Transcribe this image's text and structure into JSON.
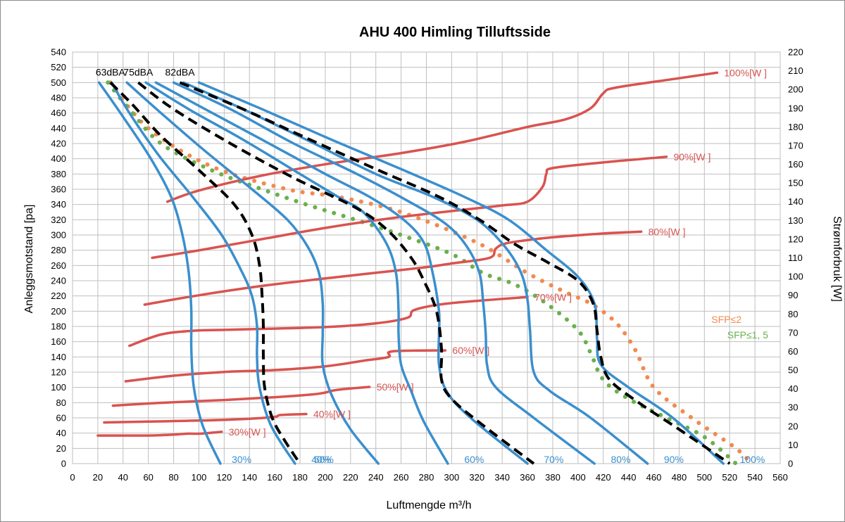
{
  "chart_data": {
    "type": "line",
    "title": "AHU 400 Himling Tilluftsside",
    "xlabel": "Luftmengde m³/h",
    "ylabel": "Anleggsmotstand [pa]",
    "y2label": "Strømforbruk [W]",
    "xlim": [
      0,
      560
    ],
    "ylim": [
      0,
      540
    ],
    "y2lim": [
      0,
      220
    ],
    "x_ticks": [
      "0",
      "20",
      "40",
      "60",
      "80",
      "100",
      "120",
      "140",
      "160",
      "180",
      "200",
      "220",
      "240",
      "260",
      "280",
      "300",
      "320",
      "340",
      "360",
      "380",
      "400",
      "420",
      "440",
      "460",
      "480",
      "500",
      "520",
      "540",
      "560"
    ],
    "y_ticks": [
      "0",
      "20",
      "40",
      "60",
      "80",
      "100",
      "120",
      "140",
      "160",
      "180",
      "200",
      "220",
      "240",
      "260",
      "280",
      "300",
      "320",
      "340",
      "360",
      "380",
      "400",
      "420",
      "440",
      "460",
      "480",
      "500",
      "520",
      "540"
    ],
    "y2_ticks": [
      "0",
      "10",
      "20",
      "30",
      "40",
      "50",
      "60",
      "70",
      "80",
      "90",
      "100",
      "110",
      "120",
      "130",
      "140",
      "150",
      "160",
      "170",
      "180",
      "190",
      "200",
      "210",
      "220"
    ],
    "grid": true,
    "colors": {
      "fan": "#3b8fcd",
      "power": "#d9534f",
      "sound": "#000000",
      "sfp2": "#f28a4e",
      "sfp15": "#6ab04c"
    },
    "fan_curves": [
      {
        "label": "30%",
        "label_x": 126,
        "points": [
          [
            21,
            500
          ],
          [
            40,
            455
          ],
          [
            62,
            400
          ],
          [
            78,
            350
          ],
          [
            87,
            300
          ],
          [
            92,
            250
          ],
          [
            94,
            200
          ],
          [
            94,
            150
          ],
          [
            96,
            100
          ],
          [
            103,
            50
          ],
          [
            117,
            0
          ]
        ]
      },
      {
        "label": "40%",
        "points": [
          [
            31,
            500
          ],
          [
            45,
            460
          ],
          [
            68,
            405
          ],
          [
            95,
            350
          ],
          [
            118,
            300
          ],
          [
            133,
            255
          ],
          [
            142,
            220
          ],
          [
            146,
            180
          ],
          [
            146,
            140
          ],
          [
            148,
            100
          ],
          [
            157,
            50
          ],
          [
            176,
            0
          ]
        ]
      },
      {
        "label": "50%",
        "label_x": 191,
        "points": [
          [
            43,
            500
          ],
          [
            70,
            460
          ],
          [
            105,
            410
          ],
          [
            142,
            360
          ],
          [
            170,
            320
          ],
          [
            186,
            285
          ],
          [
            195,
            250
          ],
          [
            198,
            210
          ],
          [
            198,
            170
          ],
          [
            198,
            130
          ],
          [
            205,
            90
          ],
          [
            220,
            45
          ],
          [
            242,
            0
          ]
        ]
      },
      {
        "label": "60%",
        "points": [
          [
            58,
            500
          ],
          [
            92,
            465
          ],
          [
            135,
            425
          ],
          [
            180,
            380
          ],
          [
            210,
            350
          ],
          [
            230,
            330
          ],
          [
            248,
            290
          ],
          [
            256,
            250
          ],
          [
            258,
            200
          ],
          [
            258,
            170
          ],
          [
            260,
            130
          ],
          [
            268,
            95
          ],
          [
            278,
            55
          ],
          [
            297,
            0
          ]
        ]
      },
      {
        "label": "70%",
        "points": [
          [
            66,
            500
          ],
          [
            105,
            465
          ],
          [
            150,
            425
          ],
          [
            200,
            380
          ],
          [
            235,
            350
          ],
          [
            262,
            320
          ],
          [
            278,
            290
          ],
          [
            285,
            250
          ],
          [
            290,
            200
          ],
          [
            290,
            170
          ],
          [
            290,
            130
          ],
          [
            296,
            95
          ],
          [
            315,
            60
          ],
          [
            360,
            0
          ]
        ]
      },
      {
        "label": "80%",
        "points": [
          [
            80,
            500
          ],
          [
            125,
            465
          ],
          [
            175,
            420
          ],
          [
            225,
            380
          ],
          [
            265,
            345
          ],
          [
            295,
            315
          ],
          [
            312,
            285
          ],
          [
            322,
            250
          ],
          [
            325,
            210
          ],
          [
            327,
            170
          ],
          [
            328,
            130
          ],
          [
            335,
            100
          ],
          [
            365,
            60
          ],
          [
            413,
            0
          ]
        ]
      },
      {
        "label": "90%",
        "points": [
          [
            88,
            500
          ],
          [
            135,
            465
          ],
          [
            185,
            425
          ],
          [
            240,
            380
          ],
          [
            285,
            350
          ],
          [
            320,
            320
          ],
          [
            342,
            285
          ],
          [
            355,
            250
          ],
          [
            360,
            215
          ],
          [
            362,
            175
          ],
          [
            365,
            120
          ],
          [
            378,
            95
          ],
          [
            410,
            60
          ],
          [
            455,
            0
          ]
        ]
      },
      {
        "label": "100%",
        "points": [
          [
            100,
            500
          ],
          [
            150,
            465
          ],
          [
            205,
            425
          ],
          [
            262,
            385
          ],
          [
            310,
            350
          ],
          [
            345,
            320
          ],
          [
            375,
            280
          ],
          [
            400,
            245
          ],
          [
            413,
            210
          ],
          [
            415,
            165
          ],
          [
            418,
            130
          ],
          [
            440,
            100
          ],
          [
            475,
            60
          ],
          [
            515,
            0
          ]
        ]
      }
    ],
    "sound_curves": [
      {
        "label": "63dBA",
        "points": [
          [
            30,
            500
          ],
          [
            48,
            470
          ],
          [
            70,
            430
          ],
          [
            100,
            385
          ],
          [
            128,
            340
          ],
          [
            142,
            300
          ],
          [
            148,
            260
          ],
          [
            150,
            220
          ],
          [
            151,
            180
          ],
          [
            151,
            140
          ],
          [
            152,
            100
          ],
          [
            158,
            60
          ],
          [
            168,
            30
          ],
          [
            180,
            0
          ]
        ]
      },
      {
        "label": "75dBA",
        "points": [
          [
            52,
            500
          ],
          [
            80,
            465
          ],
          [
            125,
            420
          ],
          [
            175,
            375
          ],
          [
            225,
            335
          ],
          [
            250,
            305
          ],
          [
            268,
            270
          ],
          [
            278,
            240
          ],
          [
            288,
            200
          ],
          [
            292,
            150
          ],
          [
            292,
            110
          ],
          [
            300,
            85
          ],
          [
            325,
            50
          ],
          [
            365,
            0
          ]
        ]
      },
      {
        "label": "82dBA",
        "points": [
          [
            85,
            500
          ],
          [
            135,
            465
          ],
          [
            188,
            425
          ],
          [
            242,
            385
          ],
          [
            290,
            350
          ],
          [
            322,
            320
          ],
          [
            350,
            288
          ],
          [
            375,
            265
          ],
          [
            400,
            240
          ],
          [
            412,
            210
          ],
          [
            415,
            175
          ],
          [
            418,
            140
          ],
          [
            425,
            110
          ],
          [
            448,
            80
          ],
          [
            480,
            45
          ],
          [
            520,
            0
          ]
        ]
      }
    ],
    "sfp_curves": [
      {
        "label": "SFP≤2",
        "points": [
          [
            30,
            500
          ],
          [
            60,
            440
          ],
          [
            110,
            390
          ],
          [
            170,
            360
          ],
          [
            210,
            350
          ],
          [
            260,
            330
          ],
          [
            320,
            290
          ],
          [
            360,
            250
          ],
          [
            390,
            225
          ],
          [
            410,
            210
          ],
          [
            430,
            185
          ],
          [
            445,
            150
          ],
          [
            460,
            100
          ],
          [
            490,
            60
          ],
          [
            525,
            20
          ],
          [
            537,
            0
          ]
        ]
      },
      {
        "label": "SFP≤1, 5",
        "points": [
          [
            28,
            500
          ],
          [
            45,
            465
          ],
          [
            70,
            420
          ],
          [
            110,
            385
          ],
          [
            150,
            360
          ],
          [
            185,
            340
          ],
          [
            220,
            322
          ],
          [
            260,
            300
          ],
          [
            300,
            275
          ],
          [
            325,
            250
          ],
          [
            350,
            235
          ],
          [
            375,
            210
          ],
          [
            400,
            175
          ],
          [
            410,
            145
          ],
          [
            420,
            110
          ],
          [
            440,
            85
          ],
          [
            470,
            60
          ],
          [
            500,
            35
          ],
          [
            525,
            0
          ]
        ]
      }
    ],
    "power_curves": [
      {
        "label": "30%[W ]",
        "points": [
          [
            20,
            15
          ],
          [
            35,
            15
          ],
          [
            60,
            15
          ],
          [
            80,
            15.5
          ],
          [
            90,
            16
          ],
          [
            100,
            16
          ],
          [
            110,
            16.5
          ],
          [
            118,
            17
          ]
        ]
      },
      {
        "label": "40%[W ]",
        "points": [
          [
            25,
            22
          ],
          [
            60,
            22.5
          ],
          [
            100,
            23
          ],
          [
            140,
            24
          ],
          [
            160,
            25
          ],
          [
            165,
            26
          ],
          [
            185,
            26.5
          ]
        ]
      },
      {
        "label": "50%[W ]",
        "points": [
          [
            32,
            31
          ],
          [
            70,
            32.5
          ],
          [
            120,
            34
          ],
          [
            160,
            35.5
          ],
          [
            190,
            37
          ],
          [
            200,
            38
          ],
          [
            210,
            39.5
          ],
          [
            235,
            41
          ]
        ]
      },
      {
        "label": "60%[W ]",
        "points": [
          [
            42,
            44
          ],
          [
            80,
            47
          ],
          [
            120,
            49
          ],
          [
            160,
            50
          ],
          [
            200,
            52
          ],
          [
            230,
            55
          ],
          [
            250,
            57
          ],
          [
            253,
            60
          ],
          [
            295,
            60.5
          ]
        ]
      },
      {
        "label": "70%[W ]",
        "points": [
          [
            45,
            63
          ],
          [
            70,
            69
          ],
          [
            95,
            71
          ],
          [
            120,
            71.5
          ],
          [
            150,
            72
          ],
          [
            200,
            73
          ],
          [
            240,
            75
          ],
          [
            265,
            78
          ],
          [
            270,
            82
          ],
          [
            290,
            85
          ],
          [
            320,
            87
          ],
          [
            360,
            89
          ]
        ]
      },
      {
        "label": "80%[W ]",
        "points": [
          [
            57,
            85
          ],
          [
            100,
            90
          ],
          [
            150,
            95
          ],
          [
            200,
            99
          ],
          [
            240,
            102
          ],
          [
            280,
            105
          ],
          [
            300,
            107
          ],
          [
            330,
            110
          ],
          [
            335,
            115
          ],
          [
            345,
            118
          ],
          [
            380,
            121
          ],
          [
            420,
            123
          ],
          [
            450,
            124
          ]
        ]
      },
      {
        "label": "90%[W ]",
        "points": [
          [
            63,
            110
          ],
          [
            100,
            114
          ],
          [
            150,
            120
          ],
          [
            200,
            126
          ],
          [
            250,
            131
          ],
          [
            300,
            135
          ],
          [
            340,
            138
          ],
          [
            360,
            140
          ],
          [
            372,
            148
          ],
          [
            375,
            155
          ],
          [
            380,
            158
          ],
          [
            420,
            161
          ],
          [
            470,
            164
          ]
        ]
      },
      {
        "label": "100%[W ]",
        "points": [
          [
            75,
            140
          ],
          [
            100,
            146
          ],
          [
            150,
            154
          ],
          [
            200,
            160
          ],
          [
            260,
            166
          ],
          [
            310,
            172
          ],
          [
            360,
            180
          ],
          [
            390,
            184
          ],
          [
            410,
            190
          ],
          [
            420,
            198
          ],
          [
            430,
            201
          ],
          [
            480,
            206
          ],
          [
            510,
            209
          ]
        ]
      }
    ],
    "legend": {
      "placement": "right",
      "entries": [
        "SFP≤2",
        "SFP≤1, 5"
      ]
    }
  }
}
